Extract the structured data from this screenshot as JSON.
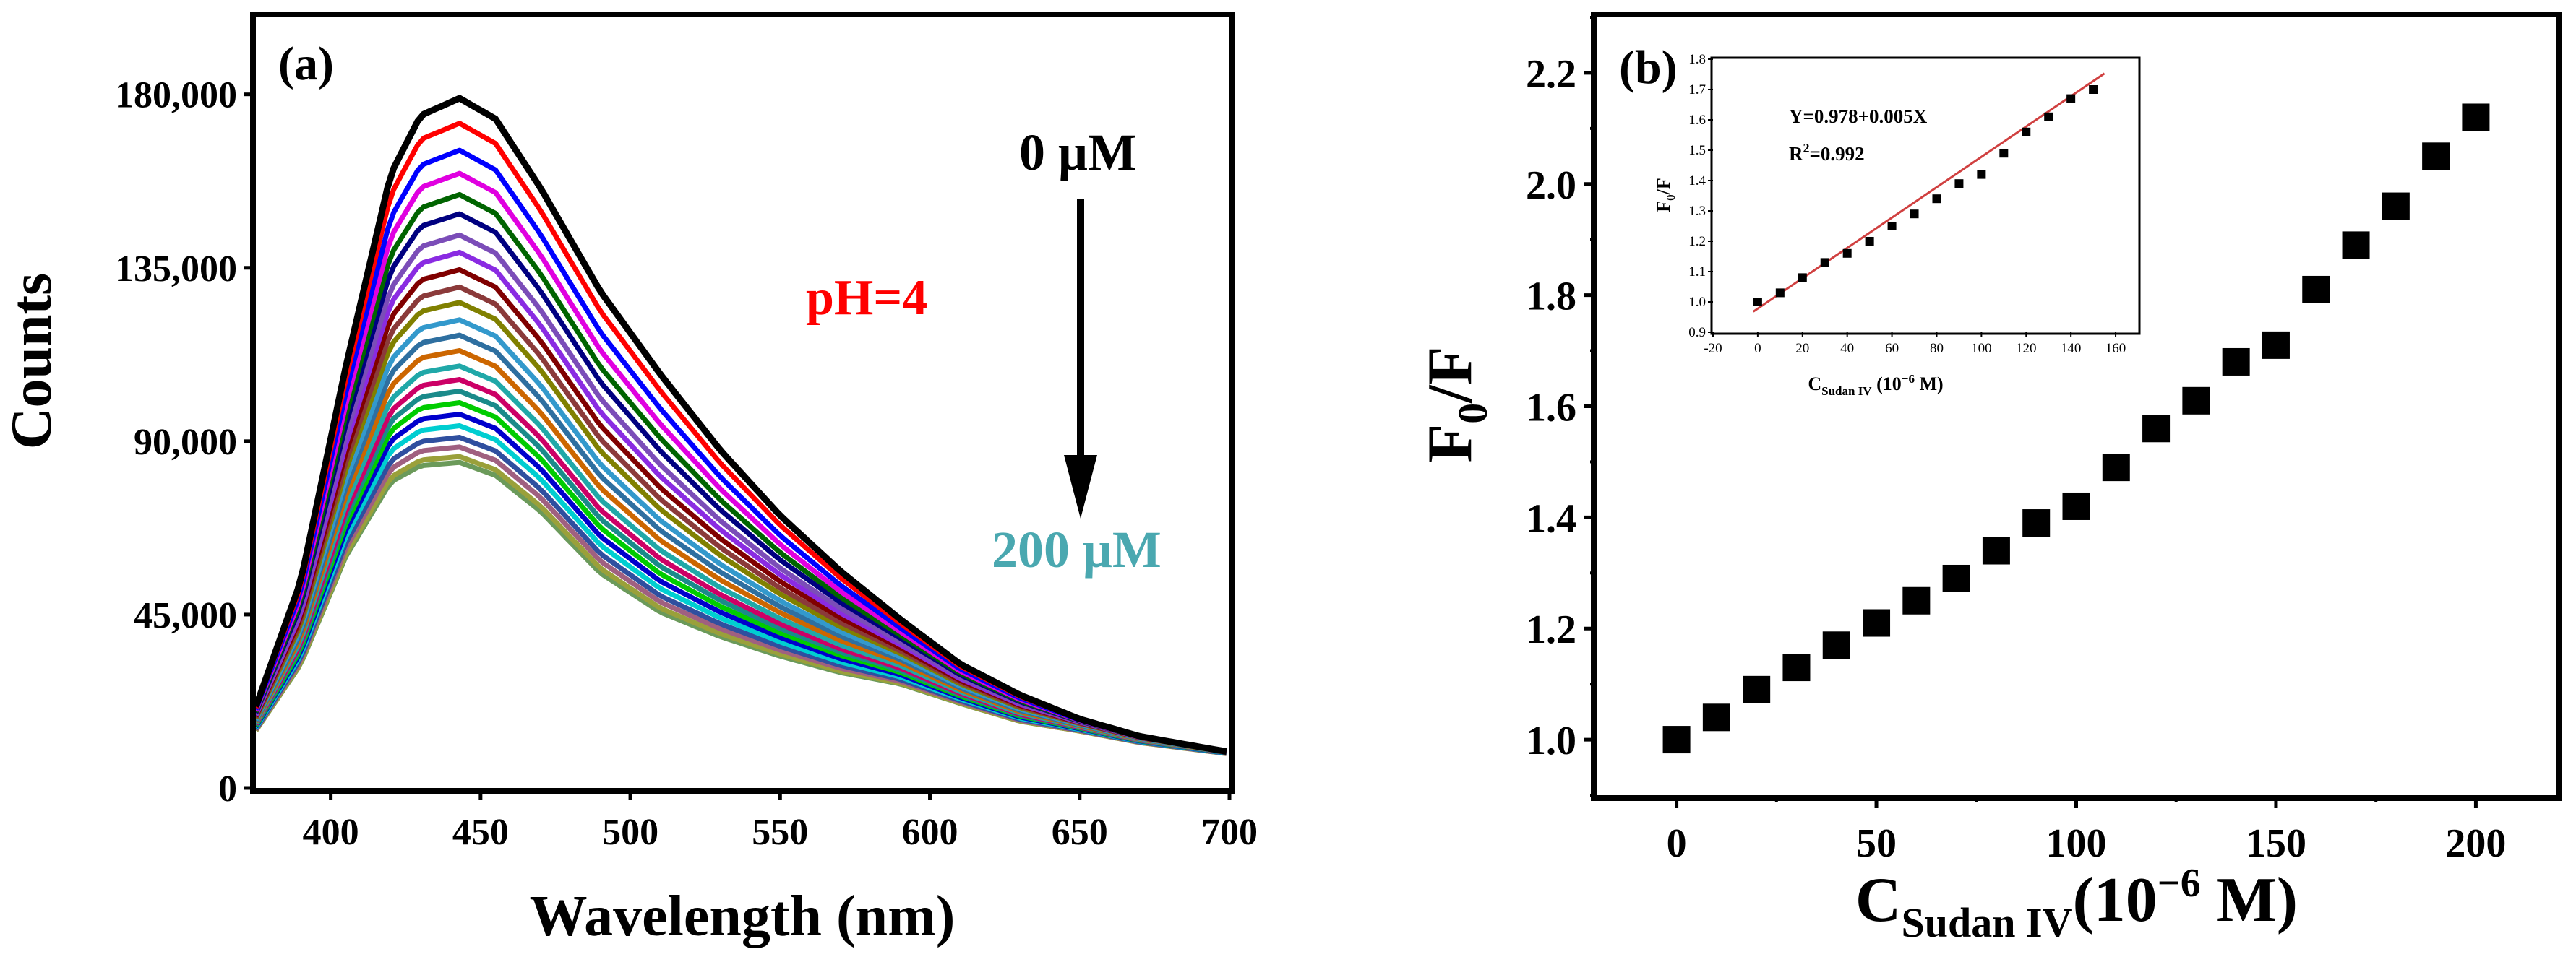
{
  "chart_data": [
    {
      "panel_label": "(a)",
      "type": "line",
      "xlabel": "Wavelength (nm)",
      "ylabel": "Counts",
      "xlim": [
        375,
        700
      ],
      "ylim": [
        0,
        200000
      ],
      "xticks": [
        400,
        450,
        500,
        550,
        600,
        650,
        700
      ],
      "yticks": [
        0,
        45000,
        90000,
        135000,
        180000
      ],
      "ytick_labels": [
        "0",
        "45,000",
        "90,000",
        "135,000",
        "180,000"
      ],
      "annotations": [
        {
          "text": "0 μM",
          "color": "#000000"
        },
        {
          "text": "pH=4",
          "color": "#ff0000"
        },
        {
          "text": "200 μM",
          "color": "#4aa8b0"
        }
      ],
      "concentration_series": {
        "peak_wavelength_nm": 443,
        "peak_counts": [
          179000,
          172500,
          165500,
          159500,
          154000,
          149000,
          143500,
          139000,
          134500,
          130000,
          126000,
          121500,
          117500,
          113500,
          109500,
          106000,
          103000,
          100000,
          97000,
          94000,
          91000,
          88500,
          86000,
          84500
        ],
        "colors": [
          "#000000",
          "#ff0000",
          "#0000ff",
          "#e000e0",
          "#006400",
          "#000080",
          "#7b4db8",
          "#8a2be2",
          "#800000",
          "#8b3a3a",
          "#808000",
          "#3399cc",
          "#2e6fa0",
          "#cc6600",
          "#20a8a8",
          "#cc0066",
          "#1a8a8a",
          "#00cc00",
          "#0000cd",
          "#00ced1",
          "#2f4f9f",
          "#a06080",
          "#9aa03a",
          "#6b9a5a"
        ],
        "profile_wavelength": [
          375,
          390,
          405,
          420,
          430,
          443,
          455,
          470,
          490,
          510,
          530,
          550,
          570,
          590,
          610,
          630,
          650,
          670,
          700
        ],
        "profile_black": [
          0.118,
          0.3,
          0.61,
          0.89,
          0.975,
          1.0,
          0.97,
          0.87,
          0.72,
          0.6,
          0.49,
          0.395,
          0.315,
          0.245,
          0.18,
          0.135,
          0.1,
          0.075,
          0.052
        ],
        "profile_last": [
          0.176,
          0.38,
          0.71,
          0.94,
          0.99,
          1.0,
          0.96,
          0.85,
          0.66,
          0.54,
          0.465,
          0.405,
          0.355,
          0.32,
          0.26,
          0.205,
          0.175,
          0.14,
          0.105
        ]
      }
    },
    {
      "panel_label": "(b)",
      "type": "scatter",
      "xlabel": "C",
      "xlabel_sub": "Sudan IV",
      "xlabel_unit_prefix": "(10",
      "xlabel_unit_exp": "−6",
      "xlabel_unit_suffix": " M)",
      "ylabel": "F",
      "ylabel_sub": "0",
      "ylabel_suffix": "/F",
      "xlim": [
        -20,
        220
      ],
      "ylim": [
        0.9,
        2.3
      ],
      "xticks": [
        0,
        50,
        100,
        150,
        200
      ],
      "yticks": [
        1.0,
        1.2,
        1.4,
        1.6,
        1.8,
        2.0,
        2.2
      ],
      "ytick_labels": [
        "1.0",
        "1.2",
        "1.4",
        "1.6",
        "1.8",
        "2.0",
        "2.2"
      ],
      "x": [
        0,
        10,
        20,
        30,
        40,
        50,
        60,
        70,
        80,
        90,
        100,
        110,
        120,
        130,
        140,
        150,
        160,
        170,
        180,
        190,
        200
      ],
      "y": [
        1.0,
        1.04,
        1.09,
        1.13,
        1.17,
        1.21,
        1.25,
        1.29,
        1.34,
        1.39,
        1.42,
        1.49,
        1.56,
        1.61,
        1.68,
        1.71,
        1.81,
        1.89,
        1.96,
        2.05,
        2.12
      ]
    },
    {
      "panel_label": "",
      "type": "scatter",
      "role": "inset of (b)",
      "xlabel": "C",
      "xlabel_sub": "Sudan IV",
      "xlabel_unit": " (10",
      "xlabel_unit_exp": "−6",
      "xlabel_unit_suffix": " M)",
      "ylabel": "F",
      "ylabel_sub": "0",
      "ylabel_suffix": "/F",
      "xlim": [
        -20,
        170
      ],
      "ylim": [
        0.9,
        1.8
      ],
      "xticks": [
        -20,
        0,
        20,
        40,
        60,
        80,
        100,
        120,
        140,
        160
      ],
      "yticks": [
        0.9,
        1.0,
        1.1,
        1.2,
        1.3,
        1.4,
        1.5,
        1.6,
        1.7,
        1.8
      ],
      "ytick_labels": [
        "0.9",
        "1.0",
        "1.1",
        "1.2",
        "1.3",
        "1.4",
        "1.5",
        "1.6",
        "1.7",
        "1.8"
      ],
      "x": [
        0,
        10,
        20,
        30,
        40,
        50,
        60,
        70,
        80,
        90,
        100,
        110,
        120,
        130,
        140,
        150
      ],
      "y": [
        1.0,
        1.03,
        1.08,
        1.13,
        1.16,
        1.2,
        1.25,
        1.29,
        1.34,
        1.39,
        1.42,
        1.49,
        1.56,
        1.61,
        1.67,
        1.7
      ],
      "fit": {
        "intercept": 0.978,
        "slope": 0.005,
        "color": "#d04040"
      },
      "equation_text": "Y=0.978+0.005X",
      "r2_prefix": "R",
      "r2_exp": "2",
      "r2_value": "=0.992"
    }
  ]
}
